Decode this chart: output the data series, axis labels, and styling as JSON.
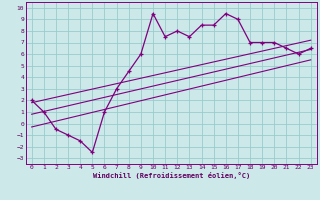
{
  "bg_color": "#cce8e8",
  "grid_color": "#99cccc",
  "line_color": "#800080",
  "spine_color": "#800080",
  "label_color": "#600060",
  "xlim": [
    -0.5,
    23.5
  ],
  "ylim": [
    -3.5,
    10.5
  ],
  "xticks": [
    0,
    1,
    2,
    3,
    4,
    5,
    6,
    7,
    8,
    9,
    10,
    11,
    12,
    13,
    14,
    15,
    16,
    17,
    18,
    19,
    20,
    21,
    22,
    23
  ],
  "yticks": [
    -3,
    -2,
    -1,
    0,
    1,
    2,
    3,
    4,
    5,
    6,
    7,
    8,
    9,
    10
  ],
  "data_x": [
    0,
    1,
    2,
    3,
    4,
    5,
    6,
    7,
    8,
    9,
    10,
    11,
    12,
    13,
    14,
    15,
    16,
    17,
    18,
    19,
    20,
    21,
    22,
    23
  ],
  "data_y": [
    2,
    1,
    -0.5,
    -1,
    -1.5,
    -2.5,
    1,
    3,
    4.5,
    6,
    9.5,
    7.5,
    8,
    7.5,
    8.5,
    8.5,
    9.5,
    9,
    7,
    7,
    7,
    6.5,
    6,
    6.5
  ],
  "line1_x": [
    0,
    23
  ],
  "line1_y": [
    1.8,
    7.2
  ],
  "line2_x": [
    0,
    23
  ],
  "line2_y": [
    0.8,
    6.4
  ],
  "line3_x": [
    0,
    23
  ],
  "line3_y": [
    -0.3,
    5.5
  ],
  "xlabel": "Windchill (Refroidissement éolien,°C)"
}
